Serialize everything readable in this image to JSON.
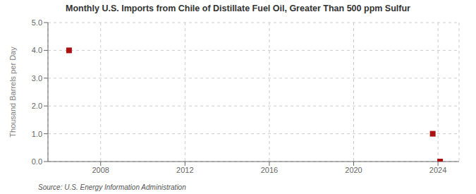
{
  "chart_data": {
    "type": "scatter",
    "title": "Monthly U.S. Imports from Chile of Distillate Fuel Oil, Greater Than 500 ppm Sulfur",
    "y_label": "Thousand Barrels per Day",
    "annotations": [
      "Source: U.S. Energy Information Administration"
    ],
    "x": [
      2006.5,
      2023.75,
      2024.1
    ],
    "values": [
      4.0,
      1.0,
      0.0
    ],
    "color": "#aa1111",
    "marker": "square",
    "xlim": [
      2005.5,
      2025.0
    ],
    "ylim": [
      0.0,
      5.0
    ],
    "xticks": [
      2008,
      2012,
      2016,
      2020,
      2024
    ],
    "yticks": [
      {
        "value": 0.0,
        "label": "0.0"
      },
      {
        "value": 1.0,
        "label": "1.0"
      },
      {
        "value": 2.0,
        "label": "2.0"
      },
      {
        "value": 3.0,
        "label": "3.0"
      },
      {
        "value": 4.0,
        "label": "4.0"
      },
      {
        "value": 5.0,
        "label": "5.0"
      }
    ],
    "grid": true
  }
}
